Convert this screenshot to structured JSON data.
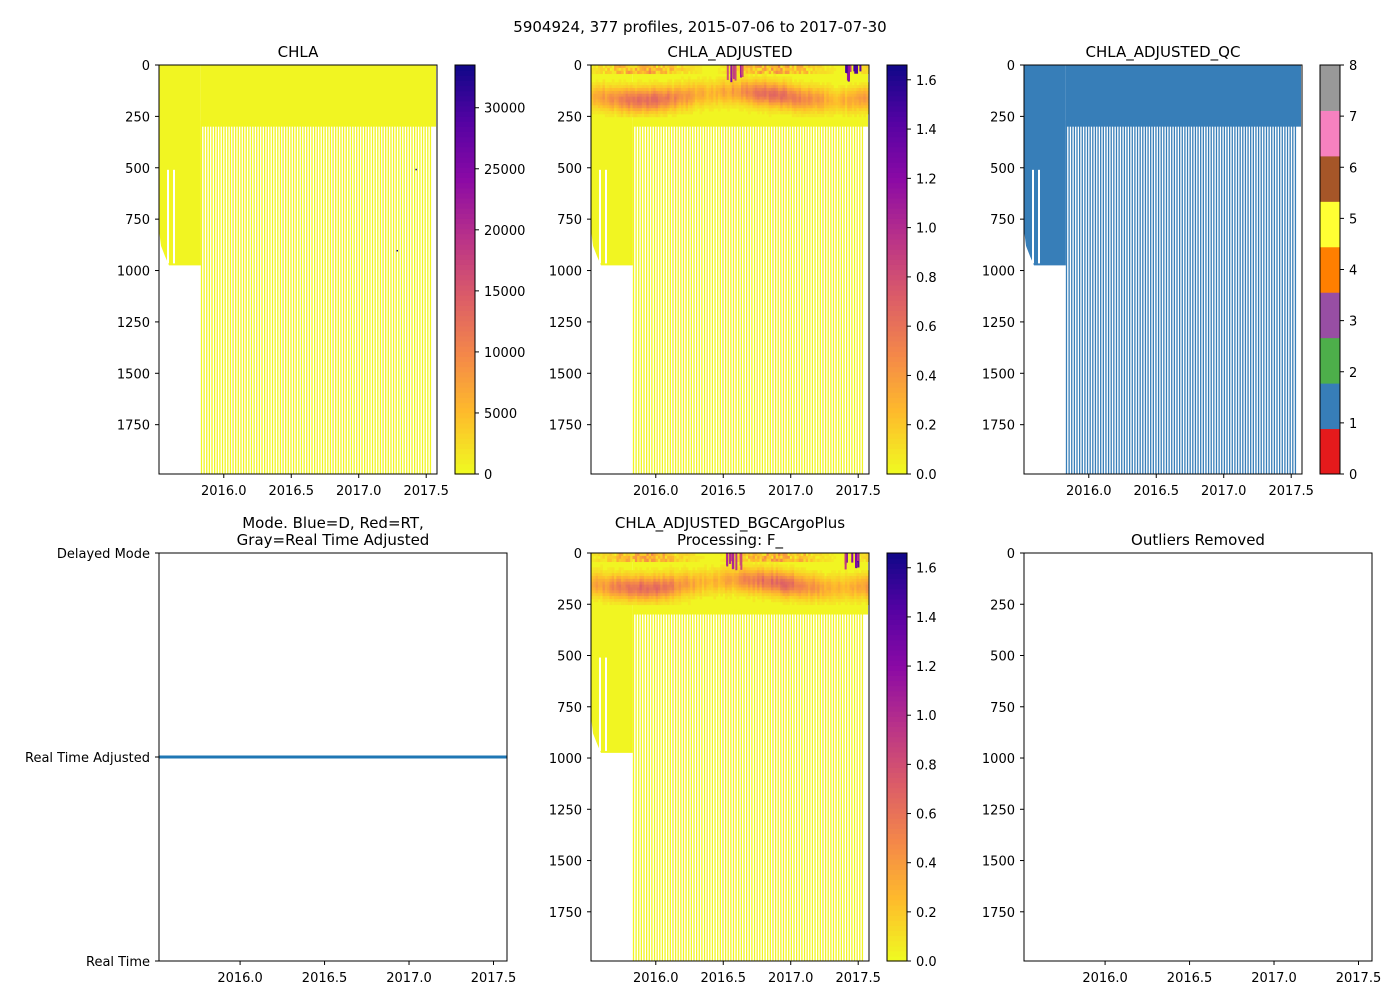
{
  "figure_title": "5904924, 377 profiles, 2015-07-06 to 2017-07-30",
  "colors": {
    "qc": [
      "#e41a1c",
      "#377eb8",
      "#4daf4a",
      "#984ea3",
      "#ff7f00",
      "#ffff33",
      "#a65628",
      "#f781bf",
      "#999999"
    ],
    "mode_line": "#1f77b4",
    "plasma_low": "#f0f921",
    "plasma_high": "#0d0887"
  },
  "chart_data": [
    {
      "id": "chla",
      "type": "heatmap",
      "title": "CHLA",
      "xlim": [
        2015.52,
        2017.58
      ],
      "ylim": [
        1990,
        0
      ],
      "x_ticks": [
        2016.0,
        2016.5,
        2017.0,
        2017.5
      ],
      "x_tick_labels": [
        "2016.0",
        "2016.5",
        "2017.0",
        "2017.5"
      ],
      "y_ticks": [
        0,
        250,
        500,
        750,
        1000,
        1250,
        1500,
        1750
      ],
      "y_tick_labels": [
        "0",
        "250",
        "500",
        "750",
        "1000",
        "1250",
        "1500",
        "1750"
      ],
      "colormap": "plasma_r",
      "colorbar": {
        "min": 0,
        "max": 33500,
        "ticks": [
          0,
          5000,
          10000,
          15000,
          20000,
          25000,
          30000
        ],
        "tick_labels": [
          "0",
          "5000",
          "10000",
          "15000",
          "20000",
          "25000",
          "30000"
        ]
      },
      "shallow_bottom": 300,
      "deep_bottom": 1990,
      "early_bottom": 975,
      "deep_start": 2015.83,
      "deep_end": 2017.54,
      "deep_step": 0.0195,
      "anomalies": [
        {
          "x": 2017.42,
          "y": 505,
          "value": 33000
        },
        {
          "x": 2017.28,
          "y": 900,
          "value": 33000
        }
      ]
    },
    {
      "id": "chla_adj",
      "type": "heatmap",
      "title": "CHLA_ADJUSTED",
      "xlim": [
        2015.52,
        2017.58
      ],
      "ylim": [
        1990,
        0
      ],
      "x_ticks": [
        2016.0,
        2016.5,
        2017.0,
        2017.5
      ],
      "x_tick_labels": [
        "2016.0",
        "2016.5",
        "2017.0",
        "2017.5"
      ],
      "y_ticks": [
        0,
        250,
        500,
        750,
        1000,
        1250,
        1500,
        1750
      ],
      "y_tick_labels": [
        "0",
        "250",
        "500",
        "750",
        "1000",
        "1250",
        "1500",
        "1750"
      ],
      "colormap": "plasma_r",
      "colorbar": {
        "min": 0,
        "max": 1.66,
        "ticks": [
          0,
          0.2,
          0.4,
          0.6,
          0.8,
          1.0,
          1.2,
          1.4,
          1.6
        ],
        "tick_labels": [
          "0.0",
          "0.2",
          "0.4",
          "0.6",
          "0.8",
          "1.0",
          "1.2",
          "1.4",
          "1.6"
        ]
      },
      "dcm_depth_m": 140,
      "peak_value": 1.6,
      "shallow_bottom": 300,
      "deep_bottom": 1990,
      "early_bottom": 975,
      "deep_start": 2015.83,
      "deep_end": 2017.54,
      "deep_step": 0.0195
    },
    {
      "id": "chla_adj_qc",
      "type": "heatmap",
      "title": "CHLA_ADJUSTED_QC",
      "xlim": [
        2015.52,
        2017.58
      ],
      "ylim": [
        1990,
        0
      ],
      "x_ticks": [
        2016.0,
        2016.5,
        2017.0,
        2017.5
      ],
      "x_tick_labels": [
        "2016.0",
        "2016.5",
        "2017.0",
        "2017.5"
      ],
      "y_ticks": [
        0,
        250,
        500,
        750,
        1000,
        1250,
        1500,
        1750
      ],
      "y_tick_labels": [
        "0",
        "250",
        "500",
        "750",
        "1000",
        "1250",
        "1500",
        "1750"
      ],
      "colormap": "qc_discrete",
      "qc_value": 1,
      "colorbar": {
        "min": 0,
        "max": 8,
        "ticks": [
          0,
          1,
          2,
          3,
          4,
          5,
          6,
          7,
          8
        ],
        "tick_labels": [
          "0",
          "1",
          "2",
          "3",
          "4",
          "5",
          "6",
          "7",
          "8"
        ]
      },
      "shallow_bottom": 300,
      "deep_bottom": 1990,
      "early_bottom": 975,
      "deep_start": 2015.83,
      "deep_end": 2017.54,
      "deep_step": 0.0195
    },
    {
      "id": "mode",
      "type": "line",
      "title": "Mode. Blue=D, Red=RT,\nGray=Real Time Adjusted",
      "xlim": [
        2015.52,
        2017.58
      ],
      "x_ticks": [
        2016.0,
        2016.5,
        2017.0,
        2017.5
      ],
      "x_tick_labels": [
        "2016.0",
        "2016.5",
        "2017.0",
        "2017.5"
      ],
      "y_categories": [
        "Real Time",
        "Real Time Adjusted",
        "Delayed Mode"
      ],
      "ylim": [
        0,
        2
      ],
      "series": [
        {
          "name": "mode",
          "x": [
            2015.52,
            2017.58
          ],
          "y": [
            1,
            1
          ]
        }
      ]
    },
    {
      "id": "chla_bgc",
      "type": "heatmap",
      "title": "CHLA_ADJUSTED_BGCArgoPlus\nProcessing: F_",
      "xlim": [
        2015.52,
        2017.58
      ],
      "ylim": [
        1990,
        0
      ],
      "x_ticks": [
        2016.0,
        2016.5,
        2017.0,
        2017.5
      ],
      "x_tick_labels": [
        "2016.0",
        "2016.5",
        "2017.0",
        "2017.5"
      ],
      "y_ticks": [
        0,
        250,
        500,
        750,
        1000,
        1250,
        1500,
        1750
      ],
      "y_tick_labels": [
        "0",
        "250",
        "500",
        "750",
        "1000",
        "1250",
        "1500",
        "1750"
      ],
      "colormap": "plasma_r",
      "colorbar": {
        "min": 0,
        "max": 1.66,
        "ticks": [
          0,
          0.2,
          0.4,
          0.6,
          0.8,
          1.0,
          1.2,
          1.4,
          1.6
        ],
        "tick_labels": [
          "0.0",
          "0.2",
          "0.4",
          "0.6",
          "0.8",
          "1.0",
          "1.2",
          "1.4",
          "1.6"
        ]
      },
      "dcm_depth_m": 140,
      "peak_value": 1.6,
      "shallow_bottom": 300,
      "deep_bottom": 1990,
      "early_bottom": 975,
      "deep_start": 2015.83,
      "deep_end": 2017.54,
      "deep_step": 0.0195
    },
    {
      "id": "outliers",
      "type": "scatter",
      "title": "Outliers Removed",
      "xlim": [
        2015.52,
        2017.58
      ],
      "ylim": [
        1990,
        0
      ],
      "x_ticks": [
        2016.0,
        2016.5,
        2017.0,
        2017.5
      ],
      "x_tick_labels": [
        "2016.0",
        "2016.5",
        "2017.0",
        "2017.5"
      ],
      "y_ticks": [
        0,
        250,
        500,
        750,
        1000,
        1250,
        1500,
        1750
      ],
      "y_tick_labels": [
        "0",
        "250",
        "500",
        "750",
        "1000",
        "1250",
        "1500",
        "1750"
      ],
      "points": []
    }
  ]
}
